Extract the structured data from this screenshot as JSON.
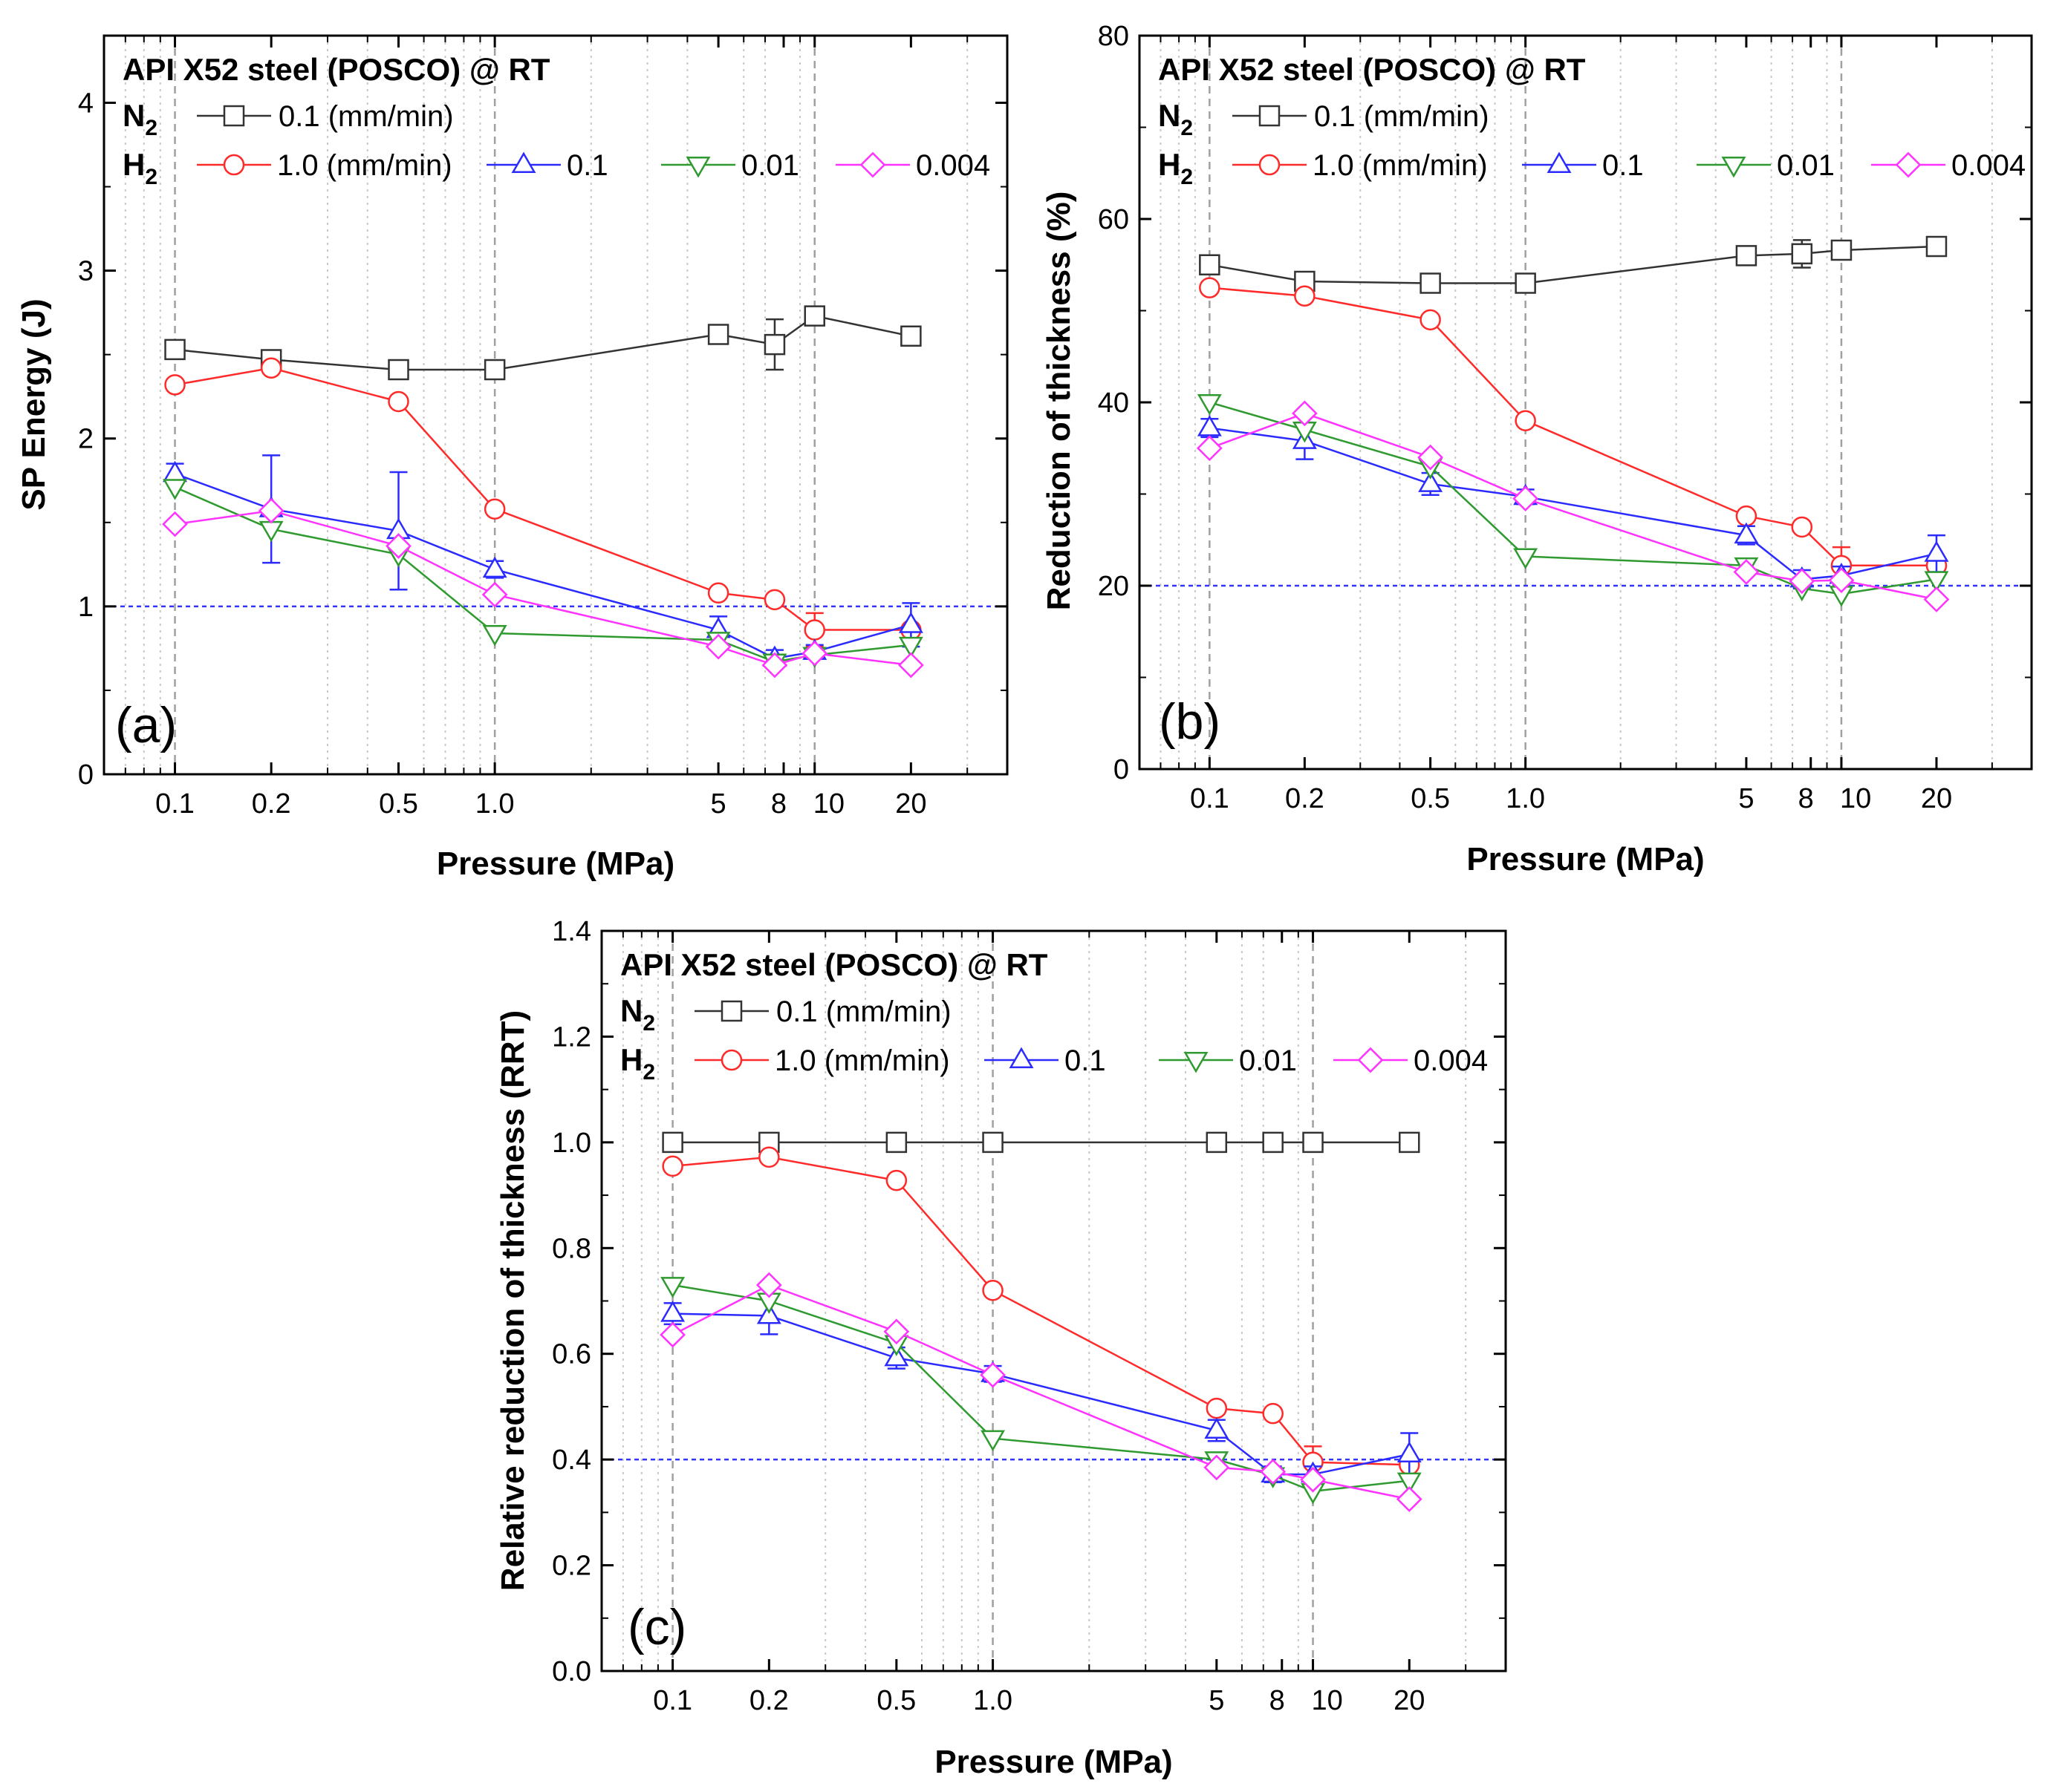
{
  "colors": {
    "n2_0_1": "#333333",
    "h2_1_0": "#ff2a2a",
    "h2_0_1": "#2b2bff",
    "h2_0_01": "#2f9a2f",
    "h2_0_004": "#ff33ff",
    "threshold": "#3333ff"
  },
  "chart_data": [
    {
      "id": "a",
      "type": "line",
      "panel_label": "(a)",
      "title": "API X52 steel (POSCO) @ RT",
      "xlabel": "Pressure (MPa)",
      "ylabel": "SP Energy (J)",
      "xscale": "log",
      "xlim": [
        0.06,
        40
      ],
      "ylim": [
        0,
        4.4
      ],
      "yticks": [
        0,
        1,
        2,
        3,
        4
      ],
      "ytick_labels": [
        "0",
        "1",
        "2",
        "3",
        "4"
      ],
      "xticks": [
        0.1,
        0.2,
        0.5,
        1,
        5,
        8,
        10,
        20
      ],
      "xtick_labels": [
        "0.1",
        "0.2",
        "0.5",
        "1.0",
        "5",
        "8",
        "10",
        "20"
      ],
      "threshold": 1.0,
      "legend": {
        "n2_label": "N",
        "h2_label": "H",
        "subscript": "2",
        "n2_rate": "0.1 (mm/min)",
        "h2_rates": [
          "1.0 (mm/min)",
          "0.1",
          "0.01",
          "0.004"
        ]
      },
      "x": [
        0.1,
        0.2,
        0.5,
        1,
        5,
        7.5,
        10,
        20
      ],
      "series": [
        {
          "name": "N2 0.1 (mm/min)",
          "color_key": "n2_0_1",
          "marker": "square",
          "values": [
            2.53,
            2.47,
            2.41,
            2.41,
            2.62,
            2.56,
            2.73,
            2.61
          ],
          "errors": [
            0.03,
            0.03,
            0.02,
            0.02,
            0.03,
            0.15,
            0.05,
            0.02
          ]
        },
        {
          "name": "H2 1.0 (mm/min)",
          "color_key": "h2_1_0",
          "marker": "circle",
          "values": [
            2.32,
            2.42,
            2.22,
            1.58,
            1.08,
            1.04,
            0.86,
            0.86
          ],
          "errors": [
            0,
            0,
            0,
            0,
            0,
            0,
            0.1,
            0
          ]
        },
        {
          "name": "H2 0.1",
          "color_key": "h2_0_1",
          "marker": "triangle-up",
          "values": [
            1.79,
            1.58,
            1.45,
            1.22,
            0.86,
            0.69,
            0.73,
            0.89
          ],
          "errors": [
            0.06,
            0.32,
            0.35,
            0.05,
            0.08,
            0.05,
            0.04,
            0.13
          ]
        },
        {
          "name": "H2 0.01",
          "color_key": "h2_0_01",
          "marker": "triangle-down",
          "values": [
            1.71,
            1.46,
            1.31,
            0.84,
            0.8,
            0.67,
            0.71,
            0.77
          ],
          "errors": [
            0,
            0,
            0,
            0,
            0,
            0,
            0,
            0
          ]
        },
        {
          "name": "H2 0.004",
          "color_key": "h2_0_004",
          "marker": "diamond",
          "values": [
            1.49,
            1.57,
            1.36,
            1.07,
            0.76,
            0.65,
            0.72,
            0.65
          ],
          "errors": [
            0,
            0,
            0,
            0,
            0,
            0,
            0,
            0
          ]
        }
      ]
    },
    {
      "id": "b",
      "type": "line",
      "panel_label": "(b)",
      "title": "API X52 steel (POSCO) @ RT",
      "xlabel": "Pressure (MPa)",
      "ylabel": "Reduction of thickness (%)",
      "xscale": "log",
      "xlim": [
        0.06,
        40
      ],
      "ylim": [
        0,
        80
      ],
      "yticks": [
        0,
        20,
        40,
        60,
        80
      ],
      "ytick_labels": [
        "0",
        "20",
        "40",
        "60",
        "80"
      ],
      "xticks": [
        0.1,
        0.2,
        0.5,
        1,
        5,
        8,
        10,
        20
      ],
      "xtick_labels": [
        "0.1",
        "0.2",
        "0.5",
        "1.0",
        "5",
        "8",
        "10",
        "20"
      ],
      "threshold": 20,
      "legend": {
        "n2_label": "N",
        "h2_label": "H",
        "subscript": "2",
        "n2_rate": "0.1 (mm/min)",
        "h2_rates": [
          "1.0 (mm/min)",
          "0.1",
          "0.01",
          "0.004"
        ]
      },
      "x": [
        0.1,
        0.2,
        0.5,
        1,
        5,
        7.5,
        10,
        20
      ],
      "series": [
        {
          "name": "N2 0.1 (mm/min)",
          "color_key": "n2_0_1",
          "marker": "square",
          "values": [
            55,
            53.2,
            53,
            53,
            56,
            56.2,
            56.6,
            57
          ],
          "errors": [
            0.5,
            0.5,
            0.5,
            0.5,
            0.5,
            1.5,
            0.8,
            0.5
          ]
        },
        {
          "name": "H2 1.0 (mm/min)",
          "color_key": "h2_1_0",
          "marker": "circle",
          "values": [
            52.5,
            51.6,
            49,
            38,
            27.6,
            26.4,
            22.2,
            22.2
          ],
          "errors": [
            0,
            0,
            0,
            0,
            0,
            0,
            2,
            0
          ]
        },
        {
          "name": "H2 0.1",
          "color_key": "h2_0_1",
          "marker": "triangle-up",
          "values": [
            37.2,
            35.8,
            31.1,
            29.7,
            25.5,
            20.7,
            21.1,
            23.5
          ],
          "errors": [
            1,
            2,
            1.2,
            0.8,
            1,
            1,
            1,
            2
          ]
        },
        {
          "name": "H2 0.01",
          "color_key": "h2_0_01",
          "marker": "triangle-down",
          "values": [
            40,
            37,
            33,
            23.2,
            22.2,
            19.7,
            19.1,
            20.7
          ],
          "errors": [
            0,
            0,
            0,
            0,
            0,
            0,
            0,
            0
          ]
        },
        {
          "name": "H2 0.004",
          "color_key": "h2_0_004",
          "marker": "diamond",
          "values": [
            35,
            38.8,
            34,
            29.5,
            21.5,
            20.5,
            20.6,
            18.5
          ],
          "errors": [
            0,
            0,
            0,
            0,
            0,
            0,
            0,
            0
          ]
        }
      ]
    },
    {
      "id": "c",
      "type": "line",
      "panel_label": "(c)",
      "title": "API X52 steel (POSCO) @ RT",
      "xlabel": "Pressure (MPa)",
      "ylabel": "Relative reduction of thickness (RRT)",
      "xscale": "log",
      "xlim": [
        0.06,
        40
      ],
      "ylim": [
        0,
        1.4
      ],
      "yticks": [
        0,
        0.2,
        0.4,
        0.6,
        0.8,
        1.0,
        1.2,
        1.4
      ],
      "ytick_labels": [
        "0.0",
        "0.2",
        "0.4",
        "0.6",
        "0.8",
        "1.0",
        "1.2",
        "1.4"
      ],
      "xticks": [
        0.1,
        0.2,
        0.5,
        1,
        5,
        8,
        10,
        20
      ],
      "xtick_labels": [
        "0.1",
        "0.2",
        "0.5",
        "1.0",
        "5",
        "8",
        "10",
        "20"
      ],
      "threshold": 0.4,
      "legend": {
        "n2_label": "N",
        "h2_label": "H",
        "subscript": "2",
        "n2_rate": "0.1 (mm/min)",
        "h2_rates": [
          "1.0 (mm/min)",
          "0.1",
          "0.01",
          "0.004"
        ]
      },
      "x": [
        0.1,
        0.2,
        0.5,
        1,
        5,
        7.5,
        10,
        20
      ],
      "series": [
        {
          "name": "N2 0.1 (mm/min)",
          "color_key": "n2_0_1",
          "marker": "square",
          "values": [
            1.0,
            1.0,
            1.0,
            1.0,
            1.0,
            1.0,
            1.0,
            1.0
          ],
          "errors": [
            0,
            0,
            0,
            0,
            0,
            0,
            0,
            0
          ]
        },
        {
          "name": "H2 1.0 (mm/min)",
          "color_key": "h2_1_0",
          "marker": "circle",
          "values": [
            0.955,
            0.972,
            0.928,
            0.72,
            0.497,
            0.487,
            0.395,
            0.39
          ],
          "errors": [
            0,
            0,
            0,
            0,
            0,
            0,
            0.03,
            0
          ]
        },
        {
          "name": "H2 0.1",
          "color_key": "h2_0_1",
          "marker": "triangle-up",
          "values": [
            0.676,
            0.672,
            0.592,
            0.562,
            0.455,
            0.372,
            0.372,
            0.41
          ],
          "errors": [
            0.02,
            0.035,
            0.02,
            0.015,
            0.02,
            0.015,
            0.015,
            0.04
          ]
        },
        {
          "name": "H2 0.01",
          "color_key": "h2_0_01",
          "marker": "triangle-down",
          "values": [
            0.73,
            0.7,
            0.62,
            0.44,
            0.4,
            0.37,
            0.34,
            0.36
          ],
          "errors": [
            0,
            0,
            0,
            0,
            0,
            0,
            0,
            0
          ]
        },
        {
          "name": "H2 0.004",
          "color_key": "h2_0_004",
          "marker": "diamond",
          "values": [
            0.636,
            0.73,
            0.642,
            0.56,
            0.385,
            0.377,
            0.362,
            0.325
          ],
          "errors": [
            0,
            0,
            0,
            0,
            0,
            0,
            0,
            0
          ]
        }
      ]
    }
  ]
}
